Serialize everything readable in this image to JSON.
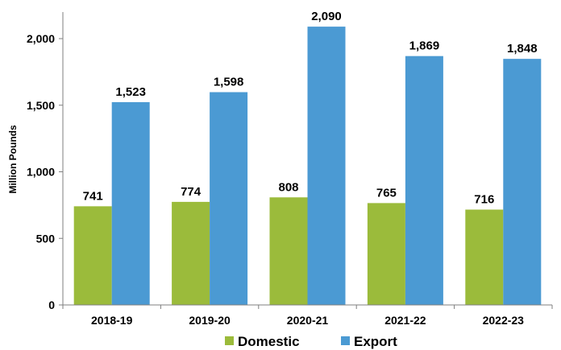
{
  "chart_data": {
    "type": "bar",
    "categories": [
      "2018-19",
      "2019-20",
      "2020-21",
      "2021-22",
      "2022-23"
    ],
    "series": [
      {
        "name": "Domestic",
        "values": [
          741,
          774,
          808,
          765,
          716
        ],
        "color": "#9BBB3B"
      },
      {
        "name": "Export",
        "values": [
          1523,
          1598,
          2090,
          1869,
          1848
        ],
        "color": "#4B9AD3"
      }
    ],
    "data_labels": {
      "Domestic": [
        "741",
        "774",
        "808",
        "765",
        "716"
      ],
      "Export": [
        "1,523",
        "1,598",
        "2,090",
        "1,869",
        "1,848"
      ]
    },
    "ylabel": "Million Pounds",
    "xlabel": "",
    "ylim": [
      0,
      2200
    ],
    "yticks": [
      0,
      500,
      1000,
      1500,
      2000
    ],
    "ytick_labels": [
      "0",
      "500",
      "1,000",
      "1,500",
      "2,000"
    ],
    "grid": false,
    "legend_position": "bottom"
  }
}
